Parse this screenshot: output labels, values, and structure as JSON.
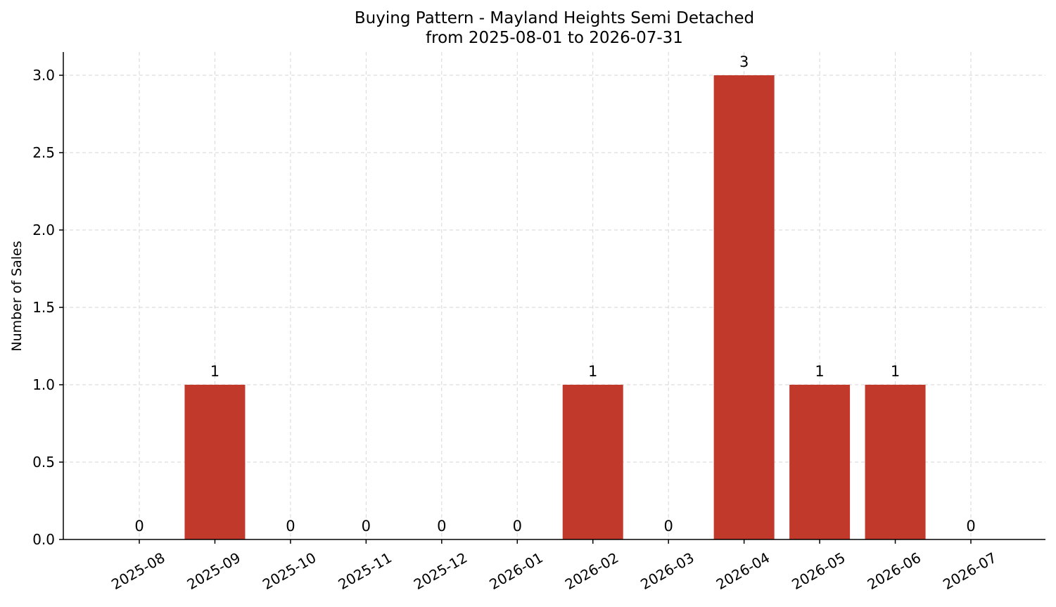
{
  "chart_data": {
    "type": "bar",
    "title": "Buying Pattern - Mayland Heights Semi Detached",
    "subtitle": "from 2025-08-01 to 2026-07-31",
    "xlabel": "",
    "ylabel": "Number of Sales",
    "categories": [
      "2025-08",
      "2025-09",
      "2025-10",
      "2025-11",
      "2025-12",
      "2026-01",
      "2026-02",
      "2026-03",
      "2026-04",
      "2026-05",
      "2026-06",
      "2026-07"
    ],
    "values": [
      0,
      1,
      0,
      0,
      0,
      0,
      1,
      0,
      3,
      1,
      1,
      0
    ],
    "ylim": [
      0,
      3.15
    ],
    "yticks": [
      "0.0",
      "0.5",
      "1.0",
      "1.5",
      "2.0",
      "2.5",
      "3.0"
    ],
    "bar_color": "#c0392b",
    "grid": true,
    "legend": false
  }
}
